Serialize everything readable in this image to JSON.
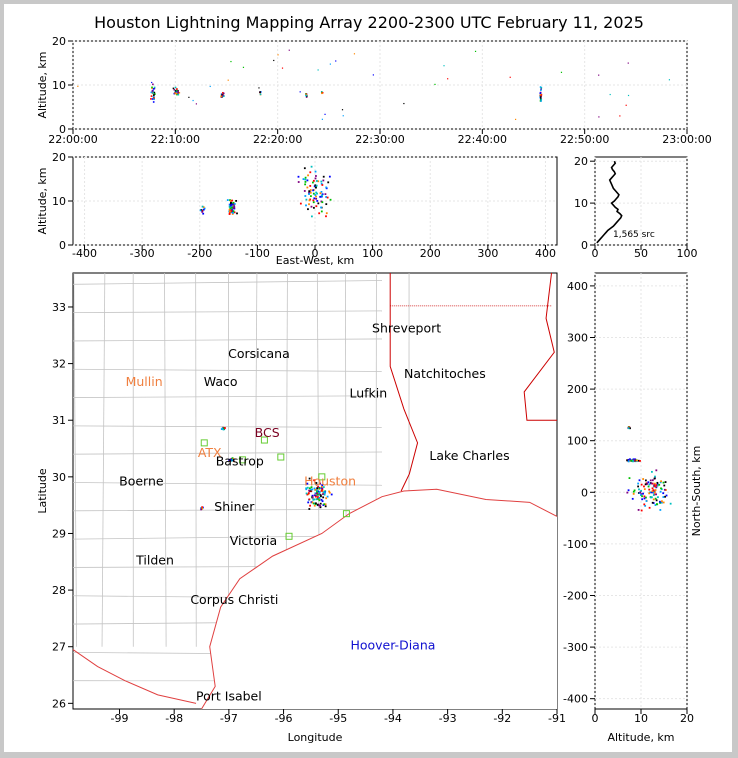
{
  "title": "Houston Lightning Mapping Array 2200-2300 UTC February 11, 2025",
  "colors": {
    "county": "#c4c4c4",
    "state": "#cc0000",
    "coast": "#e04040",
    "grid": "#e6e6e6",
    "city": "#000000",
    "city_alt": "#f08040",
    "sensor": "#7a0020",
    "hoover": "#1010d0",
    "station": "#66cc33"
  },
  "chart_data": [
    {
      "id": "time-altitude",
      "type": "scatter",
      "ylabel": "Altitude, km",
      "ylim": [
        0,
        20
      ],
      "y_ticks": [
        0,
        10,
        20
      ],
      "x_ticks": [
        "22:00:00",
        "22:10:00",
        "22:20:00",
        "22:30:00",
        "22:40:00",
        "22:50:00",
        "23:00:00"
      ],
      "x_range_minutes": [
        0,
        60
      ],
      "clusters": [
        {
          "t": 7.8,
          "alt": 8.5,
          "spread_t": 0.3,
          "spread_alt": 2.5,
          "n": 28
        },
        {
          "t": 10.1,
          "alt": 8.5,
          "spread_t": 0.4,
          "spread_alt": 1.2,
          "n": 30
        },
        {
          "t": 14.6,
          "alt": 7.8,
          "spread_t": 0.2,
          "spread_alt": 1.0,
          "n": 22
        },
        {
          "t": 18.3,
          "alt": 8.2,
          "spread_t": 0.1,
          "spread_alt": 0.6,
          "n": 8
        },
        {
          "t": 22.8,
          "alt": 7.5,
          "spread_t": 0.1,
          "spread_alt": 0.8,
          "n": 8
        },
        {
          "t": 24.3,
          "alt": 8.2,
          "spread_t": 0.1,
          "spread_alt": 0.4,
          "n": 5
        },
        {
          "t": 45.7,
          "alt": 8.0,
          "spread_t": 0.1,
          "spread_alt": 2.5,
          "n": 26
        }
      ]
    },
    {
      "id": "east-west-altitude",
      "type": "scatter",
      "xlabel": "East-West, km",
      "ylabel": "Altitude, km",
      "xlim": [
        -420,
        420
      ],
      "x_ticks": [
        -400,
        -300,
        -200,
        -100,
        0,
        100,
        200,
        300,
        400
      ],
      "ylim": [
        0,
        20
      ],
      "y_ticks": [
        0,
        10,
        20
      ],
      "clusters": [
        {
          "x": -145,
          "alt": 8.5,
          "spread_x": 10,
          "spread_alt": 2.0,
          "n": 70
        },
        {
          "x": -195,
          "alt": 8.0,
          "spread_x": 5,
          "spread_alt": 1.5,
          "n": 10
        },
        {
          "x": 0,
          "alt": 12.0,
          "spread_x": 40,
          "spread_alt": 7.0,
          "n": 90
        }
      ]
    },
    {
      "id": "altitude-histogram",
      "type": "line",
      "xlim": [
        0,
        100
      ],
      "x_ticks": [
        0,
        50,
        100
      ],
      "ylim": [
        0,
        21
      ],
      "y_ticks": [
        0,
        10,
        20
      ],
      "annotation": "1,565 src",
      "count": [
        2,
        4,
        6,
        8,
        10,
        12,
        14,
        17,
        20,
        22,
        24,
        26,
        28,
        29,
        27,
        24,
        25,
        22,
        20,
        18,
        21,
        23,
        25,
        26,
        24,
        22,
        20,
        19,
        18,
        17,
        16,
        18,
        20,
        22,
        21,
        19,
        18,
        20,
        22,
        21
      ],
      "altitude_km": [
        0.5,
        1.0,
        1.5,
        2.0,
        2.5,
        3.0,
        3.5,
        4.0,
        4.5,
        5.0,
        5.5,
        6.0,
        6.5,
        7.0,
        7.5,
        8.0,
        8.5,
        9.0,
        9.5,
        10.0,
        10.5,
        11.0,
        11.5,
        12.0,
        12.5,
        13.0,
        13.5,
        14.0,
        14.5,
        15.0,
        15.5,
        16.0,
        16.5,
        17.0,
        17.5,
        18.0,
        18.5,
        19.0,
        19.5,
        20.0
      ]
    },
    {
      "id": "plan-map",
      "type": "scatter",
      "xlabel": "Longitude",
      "ylabel": "Latitude",
      "xlim": [
        -99.85,
        -91.0
      ],
      "x_ticks": [
        -99,
        -98,
        -97,
        -96,
        -95,
        -94,
        -93,
        -92,
        -91
      ],
      "ylim": [
        25.9,
        33.6
      ],
      "y_ticks": [
        26,
        27,
        28,
        29,
        30,
        31,
        32,
        33
      ],
      "clusters": [
        {
          "lon": -95.4,
          "lat": 29.7,
          "spread_lon": 0.3,
          "spread_lat": 0.35,
          "n": 120
        },
        {
          "lon": -96.95,
          "lat": 30.3,
          "spread_lon": 0.06,
          "spread_lat": 0.04,
          "n": 25
        },
        {
          "lon": -97.1,
          "lat": 30.85,
          "spread_lon": 0.05,
          "spread_lat": 0.03,
          "n": 12
        },
        {
          "lon": -97.5,
          "lat": 29.45,
          "spread_lon": 0.03,
          "spread_lat": 0.03,
          "n": 6
        }
      ],
      "cities": [
        {
          "name": "Shreveport",
          "lon": -93.75,
          "lat": 32.55
        },
        {
          "name": "Corsicana",
          "lon": -96.45,
          "lat": 32.1
        },
        {
          "name": "Mullin",
          "lon": -98.55,
          "lat": 31.6,
          "alt": true
        },
        {
          "name": "Waco",
          "lon": -97.15,
          "lat": 31.6
        },
        {
          "name": "Natchitoches",
          "lon": -93.05,
          "lat": 31.75
        },
        {
          "name": "Lufkin",
          "lon": -94.45,
          "lat": 31.4
        },
        {
          "name": "BCS",
          "lon": -96.3,
          "lat": 30.7,
          "sensor": true
        },
        {
          "name": "ATX",
          "lon": -97.35,
          "lat": 30.35,
          "alt": true
        },
        {
          "name": "Bastrop",
          "lon": -96.8,
          "lat": 30.2
        },
        {
          "name": "Lake Charles",
          "lon": -92.6,
          "lat": 30.3
        },
        {
          "name": "Boerne",
          "lon": -98.6,
          "lat": 29.85
        },
        {
          "name": "Houston",
          "lon": -95.15,
          "lat": 29.85,
          "alt": true
        },
        {
          "name": "Shiner",
          "lon": -96.9,
          "lat": 29.4
        },
        {
          "name": "Victoria",
          "lon": -96.55,
          "lat": 28.8
        },
        {
          "name": "Tilden",
          "lon": -98.35,
          "lat": 28.45
        },
        {
          "name": "Corpus Christi",
          "lon": -96.9,
          "lat": 27.75
        },
        {
          "name": "Hoover-Diana",
          "lon": -94.0,
          "lat": 26.95,
          "hoover": true
        },
        {
          "name": "Port Isabel",
          "lon": -97.0,
          "lat": 26.05
        }
      ],
      "stations": [
        {
          "lon": -97.45,
          "lat": 30.6
        },
        {
          "lon": -96.35,
          "lat": 30.65
        },
        {
          "lon": -96.75,
          "lat": 30.3
        },
        {
          "lon": -95.3,
          "lat": 30.0
        },
        {
          "lon": -94.85,
          "lat": 29.35
        },
        {
          "lon": -95.9,
          "lat": 28.95
        },
        {
          "lon": -96.05,
          "lat": 30.35
        }
      ]
    },
    {
      "id": "altitude-north-south",
      "type": "scatter",
      "xlabel": "Altitude, km",
      "ylabel": "North-South, km",
      "xlim": [
        0,
        20
      ],
      "x_ticks": [
        0,
        10,
        20
      ],
      "ylim": [
        -420,
        425
      ],
      "y_ticks": [
        -400,
        -300,
        -200,
        -100,
        0,
        100,
        200,
        300,
        400
      ],
      "clusters": [
        {
          "alt": 8,
          "y": 62,
          "spread_alt": 2.0,
          "spread_y": 3,
          "n": 50
        },
        {
          "alt": 7.5,
          "y": 125,
          "spread_alt": 0.5,
          "spread_y": 3,
          "n": 8
        },
        {
          "alt": 12,
          "y": 0,
          "spread_alt": 6.0,
          "spread_y": 50,
          "n": 110
        }
      ]
    }
  ]
}
